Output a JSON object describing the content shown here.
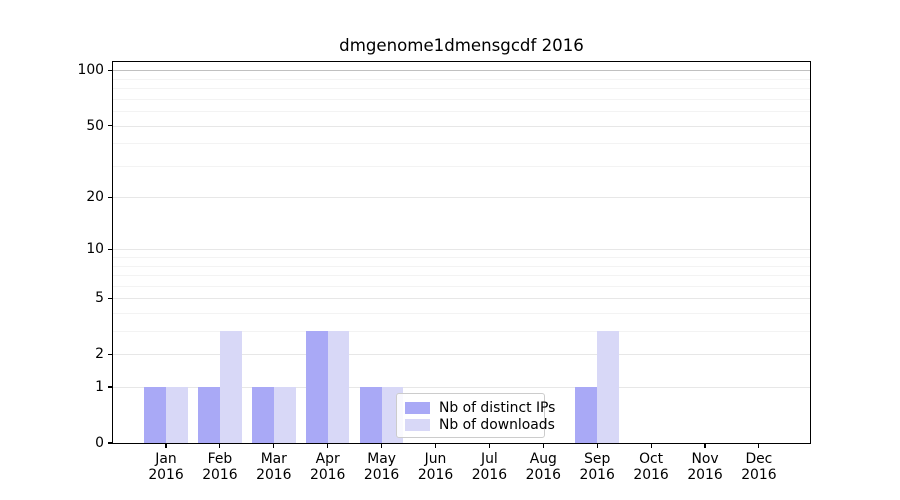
{
  "chart_data": {
    "type": "bar",
    "title": "dmgenome1dmensgcdf 2016",
    "x": {
      "months": [
        "Jan",
        "Feb",
        "Mar",
        "Apr",
        "May",
        "Jun",
        "Jul",
        "Aug",
        "Sep",
        "Oct",
        "Nov",
        "Dec"
      ],
      "year": "2016"
    },
    "series": [
      {
        "name": "Nb of distinct IPs",
        "color": "#a9a9f6",
        "values": [
          1,
          1,
          1,
          3,
          1,
          0,
          0,
          0,
          1,
          0,
          0,
          0
        ]
      },
      {
        "name": "Nb of downloads",
        "color": "#d8d8f7",
        "values": [
          1,
          3,
          1,
          3,
          1,
          0,
          0,
          0,
          3,
          0,
          0,
          0
        ]
      }
    ],
    "y_axis": {
      "scale": "log1p",
      "major_ticks": [
        0,
        1,
        2,
        5,
        10,
        20,
        50,
        100
      ],
      "minor_ticks": [
        3,
        4,
        6,
        7,
        8,
        9,
        30,
        40,
        60,
        70,
        80,
        90
      ],
      "top_value": 111
    },
    "grid": {
      "on": "both",
      "major_color": "#e7e7e7",
      "minor_color": "#f3f3f3",
      "line_100_color": "#c0c0c0"
    },
    "legend": {
      "entries": [
        "Nb of distinct IPs",
        "Nb of downloads"
      ],
      "position": "lower-center"
    },
    "colors": {
      "spine": "#000000",
      "text": "#000000"
    }
  }
}
